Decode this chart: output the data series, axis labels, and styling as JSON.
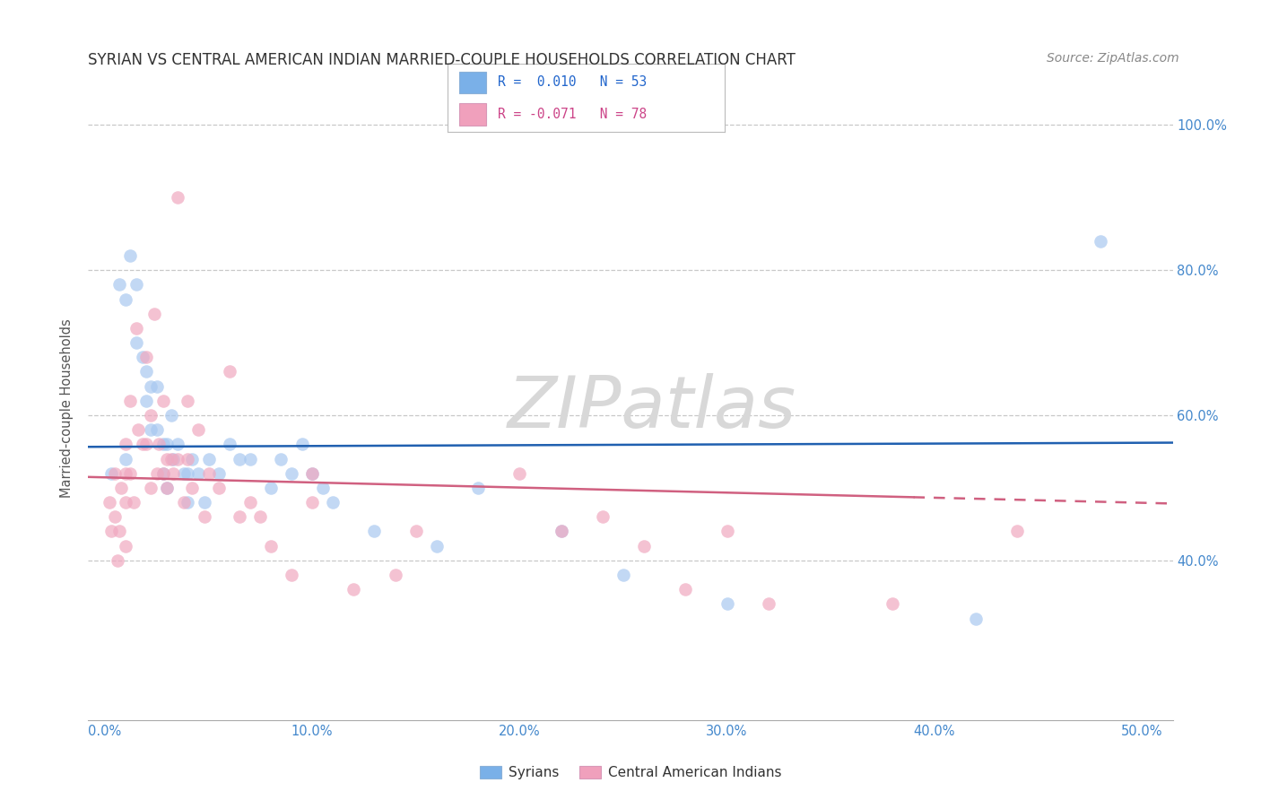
{
  "title": "SYRIAN VS CENTRAL AMERICAN INDIAN MARRIED-COUPLE HOUSEHOLDS CORRELATION CHART",
  "source": "Source: ZipAtlas.com",
  "xlabel_tick_vals": [
    0.0,
    0.1,
    0.2,
    0.3,
    0.4,
    0.5
  ],
  "xlabel_ticks": [
    "0.0%",
    "10.0%",
    "20.0%",
    "30.0%",
    "40.0%",
    "50.0%"
  ],
  "ylabel_tick_vals": [
    0.4,
    0.6,
    0.8,
    1.0
  ],
  "ylabel_ticks": [
    "40.0%",
    "60.0%",
    "80.0%",
    "100.0%"
  ],
  "ylim": [
    0.18,
    1.04
  ],
  "xlim": [
    -0.008,
    0.515
  ],
  "ylabel": "Married-couple Households",
  "syrians_R": 0.01,
  "syrians_N": 53,
  "central_R": -0.071,
  "central_N": 78,
  "blue_color": "#a8c8f0",
  "pink_color": "#f0a8c0",
  "blue_line_color": "#2060b0",
  "pink_line_color": "#d06080",
  "blue_legend_color": "#7ab0e8",
  "pink_legend_color": "#f0a0bc",
  "watermark_color": "#d8d8d8",
  "background_color": "#ffffff",
  "grid_color": "#c8c8c8",
  "tick_color": "#4488cc",
  "title_color": "#333333",
  "source_color": "#888888",
  "legend_text_color_blue": "#2266cc",
  "legend_text_color_pink": "#cc4488",
  "bottom_legend_text_color": "#333333",
  "syrians_x": [
    0.003,
    0.007,
    0.01,
    0.01,
    0.012,
    0.015,
    0.015,
    0.018,
    0.02,
    0.02,
    0.022,
    0.022,
    0.025,
    0.025,
    0.028,
    0.028,
    0.03,
    0.03,
    0.032,
    0.033,
    0.035,
    0.038,
    0.04,
    0.04,
    0.042,
    0.045,
    0.048,
    0.05,
    0.055,
    0.06,
    0.065,
    0.07,
    0.08,
    0.085,
    0.09,
    0.095,
    0.1,
    0.105,
    0.11,
    0.13,
    0.16,
    0.18,
    0.22,
    0.25,
    0.3,
    0.42,
    0.48
  ],
  "syrians_y": [
    0.52,
    0.78,
    0.76,
    0.54,
    0.82,
    0.78,
    0.7,
    0.68,
    0.66,
    0.62,
    0.64,
    0.58,
    0.64,
    0.58,
    0.56,
    0.52,
    0.56,
    0.5,
    0.6,
    0.54,
    0.56,
    0.52,
    0.52,
    0.48,
    0.54,
    0.52,
    0.48,
    0.54,
    0.52,
    0.56,
    0.54,
    0.54,
    0.5,
    0.54,
    0.52,
    0.56,
    0.52,
    0.5,
    0.48,
    0.44,
    0.42,
    0.5,
    0.44,
    0.38,
    0.34,
    0.32,
    0.84
  ],
  "central_x": [
    0.002,
    0.003,
    0.005,
    0.005,
    0.006,
    0.007,
    0.008,
    0.01,
    0.01,
    0.01,
    0.01,
    0.012,
    0.012,
    0.014,
    0.015,
    0.016,
    0.018,
    0.02,
    0.02,
    0.022,
    0.022,
    0.024,
    0.025,
    0.026,
    0.028,
    0.028,
    0.03,
    0.03,
    0.032,
    0.033,
    0.035,
    0.035,
    0.038,
    0.04,
    0.04,
    0.042,
    0.045,
    0.048,
    0.05,
    0.055,
    0.06,
    0.065,
    0.07,
    0.075,
    0.08,
    0.09,
    0.1,
    0.1,
    0.12,
    0.14,
    0.15,
    0.2,
    0.22,
    0.24,
    0.26,
    0.28,
    0.3,
    0.32,
    0.38,
    0.44
  ],
  "central_y": [
    0.48,
    0.44,
    0.52,
    0.46,
    0.4,
    0.44,
    0.5,
    0.56,
    0.52,
    0.48,
    0.42,
    0.62,
    0.52,
    0.48,
    0.72,
    0.58,
    0.56,
    0.68,
    0.56,
    0.6,
    0.5,
    0.74,
    0.52,
    0.56,
    0.62,
    0.52,
    0.54,
    0.5,
    0.54,
    0.52,
    0.9,
    0.54,
    0.48,
    0.62,
    0.54,
    0.5,
    0.58,
    0.46,
    0.52,
    0.5,
    0.66,
    0.46,
    0.48,
    0.46,
    0.42,
    0.38,
    0.52,
    0.48,
    0.36,
    0.38,
    0.44,
    0.52,
    0.44,
    0.46,
    0.42,
    0.36,
    0.44,
    0.34,
    0.34,
    0.44
  ]
}
